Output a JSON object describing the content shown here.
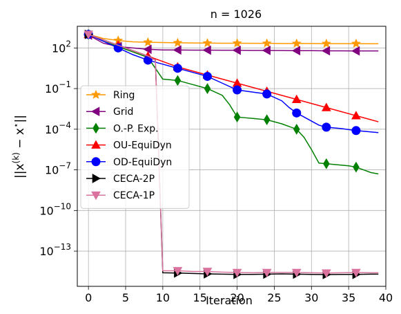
{
  "chart_data": {
    "type": "line",
    "title": "n = 1026",
    "xlabel": "Iteration",
    "ylabel_tex": "||x^(k) − x*||",
    "ylabel_parts": {
      "base1": "||x",
      "sup1": "(k)",
      "mid": " − x",
      "sup2": "⋆",
      "end": "||"
    },
    "yscale": "log",
    "xlim": [
      -1.5,
      40
    ],
    "ylim_log10": [
      -15.6,
      3.6
    ],
    "grid": true,
    "legend_position": "center-left",
    "x_ticks": [
      0,
      5,
      10,
      15,
      20,
      25,
      30,
      35,
      40
    ],
    "x_tick_labels": [
      "0",
      "5",
      "10",
      "15",
      "20",
      "25",
      "30",
      "35",
      "40"
    ],
    "y_ticks_log10": [
      2,
      -1,
      -4,
      -7,
      -10,
      -13
    ],
    "y_tick_labels": [
      {
        "base": "10",
        "exp": "2"
      },
      {
        "base": "10",
        "exp": "−1"
      },
      {
        "base": "10",
        "exp": "−4"
      },
      {
        "base": "10",
        "exp": "−7"
      },
      {
        "base": "10",
        "exp": "−10"
      },
      {
        "base": "10",
        "exp": "−13"
      }
    ],
    "series": [
      {
        "name": "Ring",
        "color": "#ff9900",
        "marker": "star",
        "x": [
          0,
          2,
          4,
          6,
          8,
          10,
          12,
          14,
          16,
          18,
          20,
          22,
          24,
          26,
          28,
          30,
          32,
          34,
          36,
          38,
          39
        ],
        "y_log10": [
          3.0,
          2.7,
          2.55,
          2.45,
          2.42,
          2.4,
          2.38,
          2.37,
          2.36,
          2.35,
          2.35,
          2.34,
          2.34,
          2.33,
          2.33,
          2.33,
          2.32,
          2.32,
          2.32,
          2.31,
          2.31
        ],
        "marker_x": [
          0,
          4,
          8,
          12,
          16,
          20,
          24,
          28,
          32,
          36
        ]
      },
      {
        "name": "Grid",
        "color": "#800080",
        "marker": "triangle-left",
        "x": [
          0,
          2,
          4,
          6,
          8,
          10,
          12,
          14,
          16,
          18,
          20,
          22,
          24,
          26,
          28,
          30,
          32,
          34,
          36,
          38,
          39
        ],
        "y_log10": [
          2.95,
          2.35,
          2.1,
          2.0,
          1.9,
          1.85,
          1.85,
          1.84,
          1.84,
          1.83,
          1.83,
          1.82,
          1.82,
          1.81,
          1.8,
          1.8,
          1.79,
          1.79,
          1.78,
          1.78,
          1.78
        ],
        "marker_x": [
          0,
          4,
          8,
          12,
          16,
          20,
          24,
          28,
          32,
          36
        ]
      },
      {
        "name": "O.-P. Exp.",
        "color": "#008000",
        "marker": "diamond",
        "x": [
          0,
          2,
          4,
          6,
          8,
          9,
          10,
          11,
          12,
          14,
          15,
          16,
          18,
          19,
          20,
          21,
          22,
          24,
          26,
          27,
          28,
          29,
          30,
          31,
          32,
          33,
          34,
          35,
          36,
          37,
          38,
          39
        ],
        "y_log10": [
          3.0,
          2.5,
          2.1,
          1.7,
          1.3,
          0.5,
          -0.3,
          -0.35,
          -0.4,
          -0.7,
          -0.85,
          -1.0,
          -1.5,
          -2.2,
          -3.1,
          -3.15,
          -3.2,
          -3.3,
          -3.6,
          -3.8,
          -4.0,
          -4.6,
          -5.5,
          -6.5,
          -6.55,
          -6.6,
          -6.65,
          -6.7,
          -6.8,
          -7.0,
          -7.2,
          -7.3
        ],
        "marker_x": [
          0,
          4,
          8,
          12,
          16,
          20,
          24,
          28,
          32,
          36
        ]
      },
      {
        "name": "OU-EquiDyn",
        "color": "#ff0000",
        "marker": "triangle-up",
        "x": [
          0,
          2,
          4,
          6,
          8,
          10,
          12,
          14,
          16,
          18,
          20,
          22,
          24,
          26,
          28,
          30,
          32,
          34,
          36,
          38,
          39
        ],
        "y_log10": [
          3.0,
          2.6,
          2.2,
          1.8,
          1.4,
          1.0,
          0.6,
          0.3,
          0.0,
          -0.3,
          -0.6,
          -0.9,
          -1.2,
          -1.5,
          -1.8,
          -2.1,
          -2.4,
          -2.7,
          -3.0,
          -3.3,
          -3.45
        ],
        "marker_x": [
          0,
          4,
          8,
          12,
          16,
          20,
          24,
          28,
          32,
          36
        ]
      },
      {
        "name": "OD-EquiDyn",
        "color": "#0000ff",
        "marker": "circle",
        "x": [
          0,
          2,
          4,
          6,
          8,
          10,
          12,
          14,
          16,
          18,
          20,
          22,
          24,
          26,
          27,
          28,
          29,
          30,
          31,
          32,
          34,
          36,
          38,
          39
        ],
        "y_log10": [
          3.0,
          2.5,
          2.0,
          1.5,
          1.1,
          0.8,
          0.5,
          0.2,
          -0.1,
          -0.6,
          -1.1,
          -1.25,
          -1.4,
          -1.9,
          -2.4,
          -2.8,
          -3.1,
          -3.4,
          -3.7,
          -3.85,
          -3.95,
          -4.1,
          -4.2,
          -4.25
        ],
        "marker_x": [
          0,
          4,
          8,
          12,
          16,
          20,
          24,
          28,
          32,
          36
        ]
      },
      {
        "name": "CECA-2P",
        "color": "#000000",
        "marker": "triangle-right",
        "x": [
          0,
          2,
          4,
          6,
          8,
          9,
          10,
          12,
          14,
          16,
          18,
          20,
          22,
          24,
          26,
          28,
          30,
          32,
          34,
          36,
          38,
          39
        ],
        "y_log10": [
          3.0,
          2.6,
          2.2,
          1.8,
          1.4,
          1.1,
          -14.6,
          -14.62,
          -14.65,
          -14.68,
          -14.7,
          -14.72,
          -14.72,
          -14.7,
          -14.68,
          -14.7,
          -14.72,
          -14.73,
          -14.72,
          -14.72,
          -14.7,
          -14.7
        ],
        "marker_x": [
          0,
          12,
          16,
          20,
          24,
          28,
          32,
          36
        ]
      },
      {
        "name": "CECA-1P",
        "color": "#d9739e",
        "marker": "triangle-down",
        "x": [
          0,
          2,
          4,
          6,
          8,
          9,
          10,
          12,
          14,
          16,
          18,
          20,
          22,
          24,
          26,
          28,
          30,
          32,
          34,
          36,
          38,
          39
        ],
        "y_log10": [
          3.0,
          2.6,
          2.2,
          1.8,
          1.4,
          1.1,
          -14.45,
          -14.45,
          -14.5,
          -14.5,
          -14.55,
          -14.58,
          -14.6,
          -14.58,
          -14.57,
          -14.58,
          -14.6,
          -14.62,
          -14.6,
          -14.58,
          -14.6,
          -14.6
        ],
        "marker_x": [
          0,
          12,
          16,
          20,
          24,
          28,
          32,
          36
        ]
      }
    ]
  }
}
